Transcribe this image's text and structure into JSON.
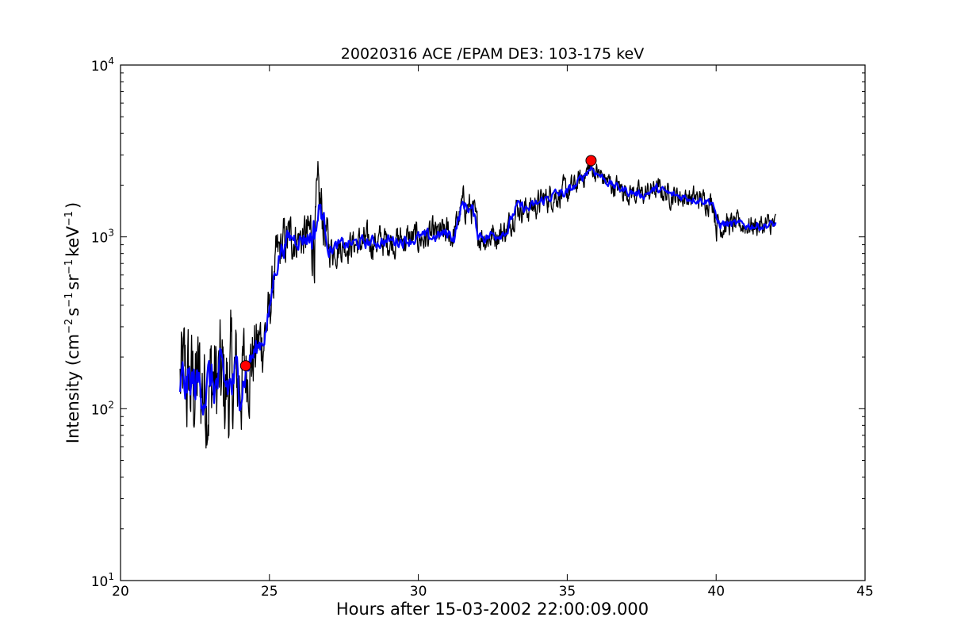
{
  "chart_data": {
    "type": "line",
    "title": "20020316 ACE /EPAM DE3: 103-175 keV",
    "xlabel": "Hours after 15-03-2002 22:00:09.000",
    "ylabel": {
      "prefix": "Intensity (cm",
      "sup1": "−2",
      "mid1": "s",
      "sup2": "−1",
      "mid2": "sr",
      "sup3": "−1",
      "mid3": "keV",
      "sup4": "−1",
      "suffix": ")"
    },
    "x_range": [
      20,
      45
    ],
    "y_range": [
      10,
      10000
    ],
    "y_scale": "log",
    "grid": false,
    "x_ticks": [
      {
        "value": 20,
        "label": "20"
      },
      {
        "value": 25,
        "label": "25"
      },
      {
        "value": 30,
        "label": "30"
      },
      {
        "value": 35,
        "label": "35"
      },
      {
        "value": 40,
        "label": "40"
      },
      {
        "value": 45,
        "label": "45"
      }
    ],
    "y_ticks": [
      {
        "value": 10,
        "base": "10",
        "exp": "1"
      },
      {
        "value": 100,
        "base": "10",
        "exp": "2"
      },
      {
        "value": 1000,
        "base": "10",
        "exp": "3"
      },
      {
        "value": 10000,
        "base": "10",
        "exp": "4"
      }
    ],
    "series": [
      {
        "role": "raw",
        "color": "#000000",
        "x": [
          22.0,
          22.5,
          23.0,
          23.5,
          24.0,
          24.2,
          24.5,
          24.8,
          25.0,
          25.2,
          25.4,
          25.6,
          25.8,
          26.0,
          26.3,
          26.5,
          26.7,
          27.0,
          27.5,
          28.0,
          28.5,
          29.0,
          29.5,
          30.0,
          30.5,
          31.0,
          31.2,
          31.5,
          31.8,
          32.0,
          32.3,
          32.7,
          33.0,
          33.3,
          33.7,
          34.0,
          34.5,
          35.0,
          35.3,
          35.8,
          36.0,
          36.5,
          37.0,
          37.5,
          38.0,
          38.5,
          39.0,
          39.5,
          39.9,
          40.0,
          40.5,
          41.0,
          41.5,
          42.0
        ],
        "y": [
          140,
          135,
          140,
          130,
          145,
          170,
          210,
          260,
          350,
          650,
          850,
          950,
          1000,
          980,
          1000,
          1050,
          1500,
          850,
          900,
          920,
          930,
          950,
          960,
          980,
          1000,
          1050,
          1000,
          1550,
          1450,
          1050,
          1000,
          1050,
          1100,
          1500,
          1450,
          1550,
          1750,
          1800,
          2000,
          2550,
          2350,
          2000,
          1850,
          1750,
          1900,
          1750,
          1700,
          1650,
          1600,
          1200,
          1180,
          1170,
          1160,
          1180
        ],
        "noise": [
          0.28,
          0.28,
          0.28,
          0.3,
          0.26,
          0.2,
          0.18,
          0.15,
          0.12,
          0.12,
          0.12,
          0.12,
          0.1,
          0.1,
          0.12,
          0.2,
          0.15,
          0.08,
          0.07,
          0.07,
          0.07,
          0.07,
          0.07,
          0.07,
          0.07,
          0.07,
          0.07,
          0.07,
          0.07,
          0.07,
          0.07,
          0.06,
          0.06,
          0.06,
          0.06,
          0.06,
          0.06,
          0.06,
          0.05,
          0.05,
          0.05,
          0.05,
          0.05,
          0.05,
          0.05,
          0.05,
          0.05,
          0.05,
          0.05,
          0.07,
          0.05,
          0.05,
          0.05,
          0.05
        ]
      },
      {
        "role": "smoothed",
        "color": "#0000ff",
        "x": [
          22.0,
          22.5,
          23.0,
          23.5,
          24.0,
          24.2,
          24.5,
          24.8,
          25.0,
          25.2,
          25.4,
          25.6,
          25.8,
          26.0,
          26.3,
          26.5,
          26.7,
          27.0,
          27.5,
          28.0,
          28.5,
          29.0,
          29.5,
          30.0,
          30.5,
          31.0,
          31.2,
          31.5,
          31.8,
          32.0,
          32.3,
          32.7,
          33.0,
          33.3,
          33.7,
          34.0,
          34.5,
          35.0,
          35.3,
          35.8,
          36.0,
          36.5,
          37.0,
          37.5,
          38.0,
          38.5,
          39.0,
          39.5,
          39.9,
          40.0,
          40.5,
          41.0,
          41.5,
          42.0
        ],
        "y": [
          140,
          135,
          140,
          130,
          145,
          170,
          210,
          260,
          350,
          650,
          850,
          950,
          1000,
          980,
          1000,
          1050,
          1500,
          850,
          900,
          920,
          930,
          950,
          960,
          980,
          1000,
          1050,
          1000,
          1550,
          1450,
          1050,
          1000,
          1050,
          1100,
          1500,
          1450,
          1550,
          1750,
          1800,
          2000,
          2550,
          2350,
          2000,
          1850,
          1750,
          1900,
          1750,
          1700,
          1650,
          1600,
          1200,
          1180,
          1170,
          1160,
          1180
        ],
        "noise": [
          0.12,
          0.12,
          0.12,
          0.14,
          0.12,
          0.08,
          0.06,
          0.05,
          0.05,
          0.05,
          0.05,
          0.05,
          0.04,
          0.04,
          0.05,
          0.1,
          0.06,
          0.03,
          0.03,
          0.03,
          0.03,
          0.03,
          0.03,
          0.03,
          0.03,
          0.03,
          0.03,
          0.03,
          0.03,
          0.03,
          0.03,
          0.025,
          0.025,
          0.025,
          0.025,
          0.025,
          0.025,
          0.025,
          0.02,
          0.02,
          0.02,
          0.02,
          0.02,
          0.02,
          0.02,
          0.02,
          0.02,
          0.02,
          0.02,
          0.03,
          0.02,
          0.02,
          0.02,
          0.02
        ]
      }
    ],
    "markers": [
      {
        "x": 24.2,
        "y": 178,
        "color": "#ff0000"
      },
      {
        "x": 35.8,
        "y": 2780,
        "color": "#ff0000"
      }
    ]
  }
}
